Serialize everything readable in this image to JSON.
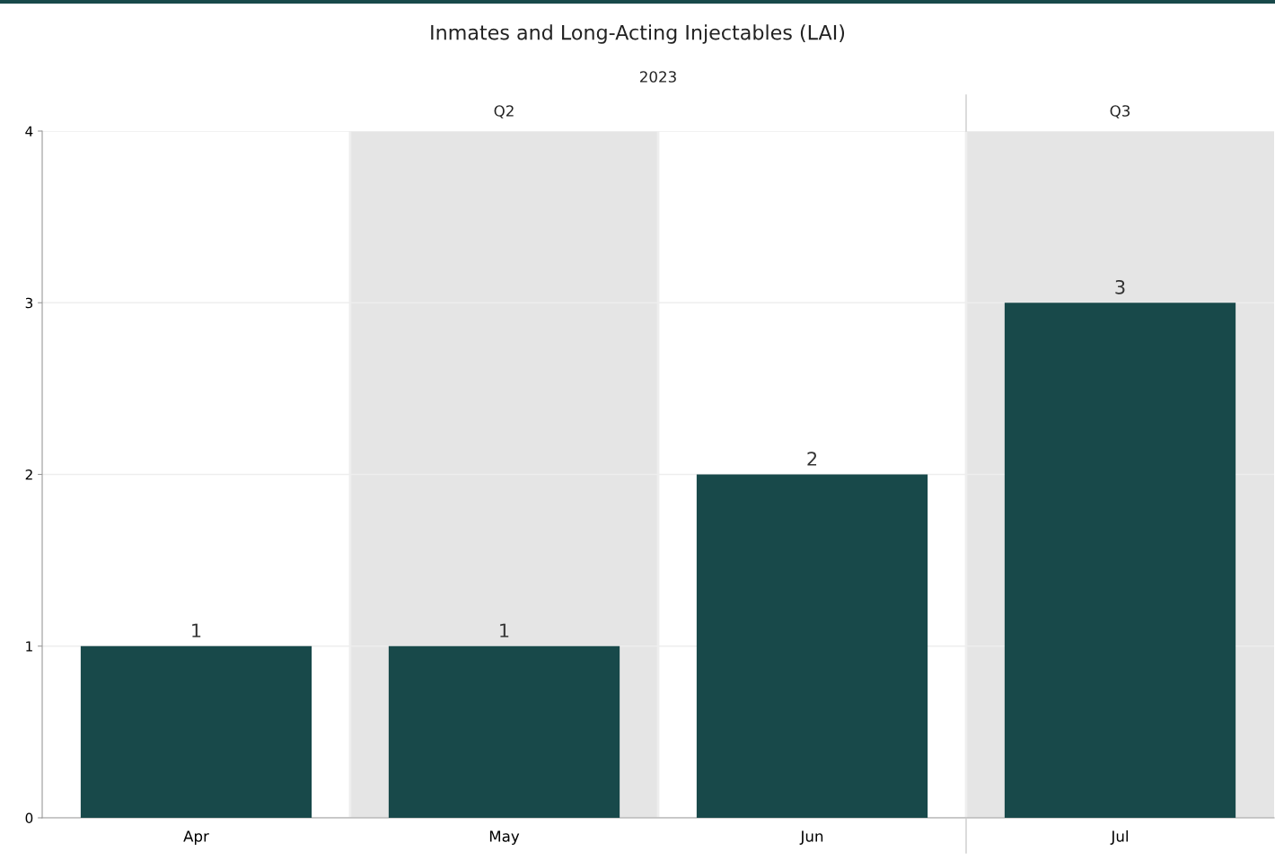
{
  "chart_data": {
    "type": "bar",
    "title": "Inmates and Long-Acting Injectables (LAI)",
    "annotations": [
      "2023",
      "Q2",
      "Q3"
    ],
    "categories": [
      "Apr",
      "May",
      "Jun",
      "Jul"
    ],
    "values": [
      1,
      1,
      2,
      3
    ],
    "color": "#18494a",
    "ylim": [
      0,
      4
    ],
    "yticks": [
      0,
      1,
      2,
      3,
      4
    ],
    "grid": "y",
    "data_labels": true,
    "bands": [
      {
        "axis": "x",
        "from": "May",
        "to": "May",
        "color": "#e5e5e5"
      },
      {
        "axis": "x",
        "from": "Jul",
        "to": "Jul",
        "color": "#e5e5e5"
      }
    ]
  }
}
